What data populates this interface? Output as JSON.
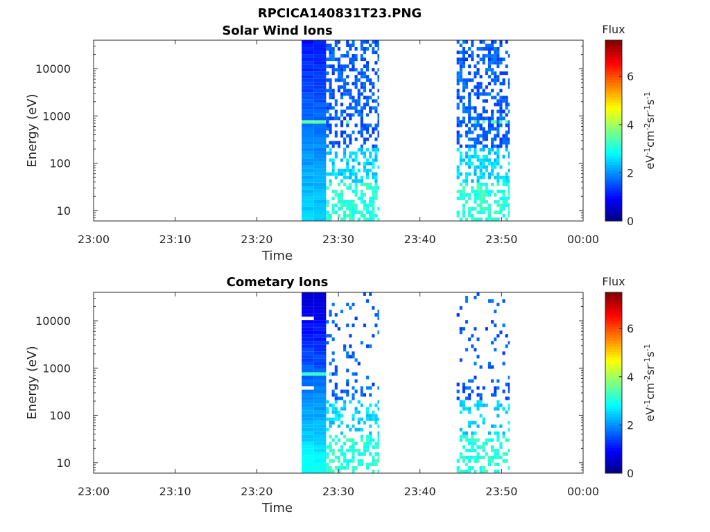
{
  "figure": {
    "title": "RPCICA140831T23.PNG"
  },
  "chart_data": [
    {
      "type": "heatmap",
      "title": "Solar Wind Ions",
      "xlabel": "Time",
      "ylabel": "Energy (eV)",
      "x_ticks": [
        "23:00",
        "23:10",
        "23:20",
        "23:30",
        "23:40",
        "23:50",
        "00:00"
      ],
      "x_range_minutes": [
        0,
        60
      ],
      "y_scale": "log",
      "y_ticks": [
        "10",
        "100",
        "1000",
        "10000"
      ],
      "y_range": [
        6,
        40000
      ],
      "colorbar": {
        "title": "Flux",
        "label": "eV-1cm-2sr-1s-1",
        "ticks": [
          "0",
          "2",
          "4",
          "6"
        ],
        "range": [
          0,
          7.5
        ],
        "colormap": "jet"
      },
      "bursts": [
        {
          "t_start": 25.5,
          "t_end": 28.5,
          "note": "dense"
        },
        {
          "t_start": 28.5,
          "t_end": 35.0,
          "note": "sparse"
        },
        {
          "t_start": 44.5,
          "t_end": 51.0,
          "note": "sparse"
        }
      ],
      "line_feature": {
        "energy": 750,
        "value": 3.5
      }
    },
    {
      "type": "heatmap",
      "title": "Cometary Ions",
      "xlabel": "Time",
      "ylabel": "Energy (eV)",
      "x_ticks": [
        "23:00",
        "23:10",
        "23:20",
        "23:30",
        "23:40",
        "23:50",
        "00:00"
      ],
      "x_range_minutes": [
        0,
        60
      ],
      "y_scale": "log",
      "y_ticks": [
        "10",
        "100",
        "1000",
        "10000"
      ],
      "y_range": [
        6,
        40000
      ],
      "colorbar": {
        "title": "Flux",
        "label": "eV-1cm-2sr-1s-1",
        "ticks": [
          "0",
          "2",
          "4",
          "6"
        ],
        "range": [
          0,
          7.5
        ],
        "colormap": "jet"
      },
      "bursts": [
        {
          "t_start": 25.5,
          "t_end": 28.5,
          "note": "dense"
        },
        {
          "t_start": 28.5,
          "t_end": 35.0,
          "note": "sparse"
        },
        {
          "t_start": 44.5,
          "t_end": 51.0,
          "note": "sparse"
        }
      ],
      "line_feature": {
        "energy": 750,
        "value": 3.2
      }
    }
  ]
}
